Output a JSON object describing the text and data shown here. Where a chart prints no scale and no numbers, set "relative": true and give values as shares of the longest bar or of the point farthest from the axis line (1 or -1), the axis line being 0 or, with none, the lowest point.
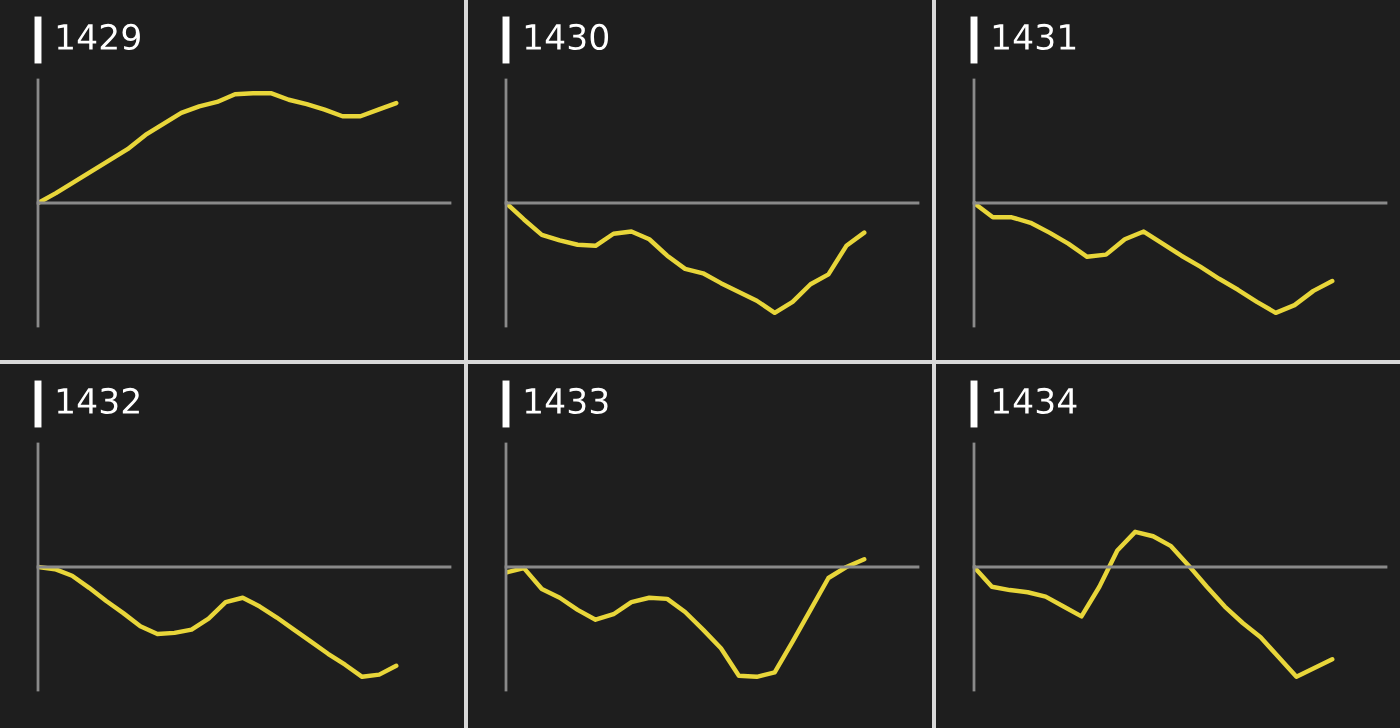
{
  "chart_data": [
    {
      "type": "line",
      "title": "1429",
      "relative": true,
      "color": "#e8d63a",
      "categories": [
        null,
        null,
        null,
        null,
        null,
        null,
        null,
        null,
        null,
        null,
        null,
        null,
        null,
        null,
        null,
        null,
        null,
        null,
        null,
        null,
        null
      ],
      "values": [
        0,
        0.09,
        0.19,
        0.29,
        0.39,
        0.49,
        0.62,
        0.72,
        0.82,
        0.88,
        0.92,
        0.99,
        1,
        1,
        0.94,
        0.9,
        0.85,
        0.79,
        0.79,
        0.85,
        0.91
      ]
    },
    {
      "type": "line",
      "title": "1430",
      "relative": true,
      "color": "#e8d63a",
      "categories": [
        null,
        null,
        null,
        null,
        null,
        null,
        null,
        null,
        null,
        null,
        null,
        null,
        null,
        null,
        null,
        null,
        null,
        null,
        null,
        null,
        null
      ],
      "values": [
        0,
        -0.15,
        -0.29,
        -0.34,
        -0.38,
        -0.39,
        -0.28,
        -0.26,
        -0.33,
        -0.48,
        -0.6,
        -0.64,
        -0.73,
        -0.81,
        -0.89,
        -1,
        -0.9,
        -0.74,
        -0.65,
        -0.39,
        -0.27
      ]
    },
    {
      "type": "line",
      "title": "1431",
      "relative": true,
      "color": "#e8d63a",
      "categories": [
        null,
        null,
        null,
        null,
        null,
        null,
        null,
        null,
        null,
        null,
        null,
        null,
        null,
        null,
        null,
        null,
        null,
        null,
        null,
        null
      ],
      "values": [
        0,
        -0.13,
        -0.13,
        -0.18,
        -0.27,
        -0.37,
        -0.49,
        -0.47,
        -0.33,
        -0.26,
        -0.37,
        -0.48,
        -0.58,
        -0.69,
        -0.79,
        -0.9,
        -1,
        -0.93,
        -0.8,
        -0.71
      ]
    },
    {
      "type": "line",
      "title": "1432",
      "relative": true,
      "color": "#e8d63a",
      "categories": [
        null,
        null,
        null,
        null,
        null,
        null,
        null,
        null,
        null,
        null,
        null,
        null,
        null,
        null,
        null,
        null,
        null,
        null,
        null,
        null,
        null,
        null
      ],
      "values": [
        0,
        -0.02,
        -0.08,
        -0.19,
        -0.31,
        -0.42,
        -0.54,
        -0.61,
        -0.6,
        -0.57,
        -0.47,
        -0.32,
        -0.28,
        -0.36,
        -0.46,
        -0.57,
        -0.68,
        -0.79,
        -0.89,
        -1,
        -0.98,
        -0.9
      ]
    },
    {
      "type": "line",
      "title": "1433",
      "relative": true,
      "color": "#e8d63a",
      "categories": [
        null,
        null,
        null,
        null,
        null,
        null,
        null,
        null,
        null,
        null,
        null,
        null,
        null,
        null,
        null,
        null,
        null,
        null,
        null,
        null,
        null
      ],
      "values": [
        -0.05,
        -0.01,
        -0.2,
        -0.28,
        -0.39,
        -0.48,
        -0.43,
        -0.32,
        -0.28,
        -0.29,
        -0.41,
        -0.57,
        -0.74,
        -0.99,
        -1,
        -0.96,
        -0.68,
        -0.39,
        -0.1,
        0,
        0.07
      ]
    },
    {
      "type": "line",
      "title": "1434",
      "relative": true,
      "color": "#e8d63a",
      "categories": [
        null,
        null,
        null,
        null,
        null,
        null,
        null,
        null,
        null,
        null,
        null,
        null,
        null,
        null,
        null,
        null,
        null,
        null,
        null,
        null,
        null
      ],
      "values": [
        0,
        -0.18,
        -0.21,
        -0.23,
        -0.27,
        -0.36,
        -0.45,
        -0.18,
        0.15,
        0.32,
        0.28,
        0.19,
        0.01,
        -0.18,
        -0.36,
        -0.51,
        -0.64,
        -0.82,
        -1,
        -0.92,
        -0.84
      ]
    }
  ]
}
